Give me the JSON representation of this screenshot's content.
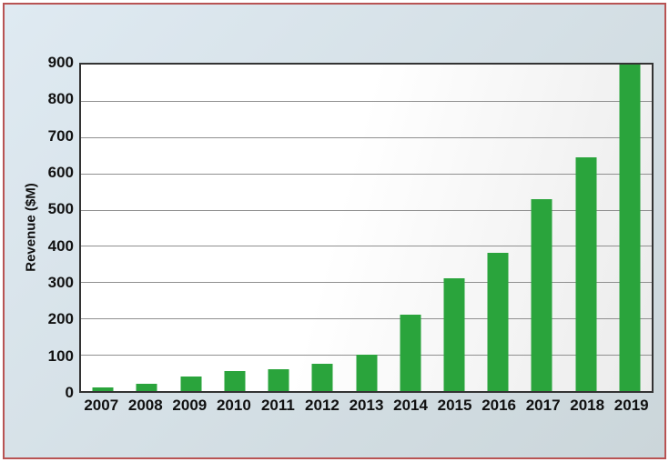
{
  "chart_data": {
    "type": "bar",
    "title": "",
    "ylabel": "Revenue ($M)",
    "xlabel": "",
    "categories": [
      "2007",
      "2008",
      "2009",
      "2010",
      "2011",
      "2012",
      "2013",
      "2014",
      "2015",
      "2016",
      "2017",
      "2018",
      "2019"
    ],
    "values": [
      10,
      20,
      40,
      55,
      60,
      75,
      100,
      210,
      310,
      380,
      530,
      645,
      900
    ],
    "series_name": "Revenue ($M)",
    "ylim": [
      0,
      900
    ],
    "yticks": [
      0,
      100,
      200,
      300,
      400,
      500,
      600,
      700,
      800,
      900
    ],
    "grid": true,
    "legend": "none"
  },
  "colors": {
    "bar": "#2aa43c",
    "frame_border": "#b85353",
    "canvas_top": "#dfeaf2",
    "canvas_bottom": "#cbd6da",
    "plot_border": "#333333",
    "gridline": "#909090",
    "text": "#111111"
  }
}
